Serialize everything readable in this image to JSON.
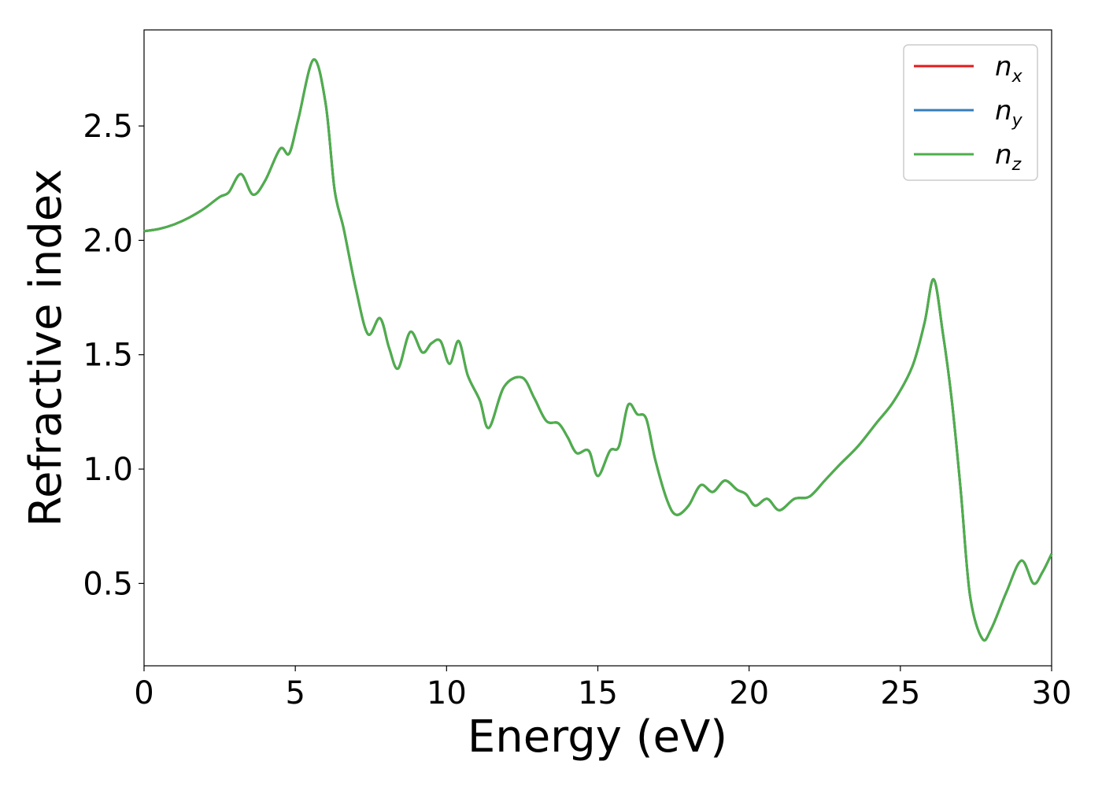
{
  "chart_data": {
    "type": "line",
    "title": "",
    "xlabel": "Energy (eV)",
    "ylabel": "Refractive index",
    "xlim": [
      0,
      30
    ],
    "ylim": [
      0.14,
      2.92
    ],
    "xticks": [
      "0",
      "5",
      "10",
      "15",
      "20",
      "25",
      "30"
    ],
    "yticks": [
      "0.5",
      "1.0",
      "1.5",
      "2.0",
      "2.5"
    ],
    "grid": false,
    "legend_position": "top-right",
    "series": [
      {
        "name": "n",
        "subscript": "x",
        "color": "#e41a1c"
      },
      {
        "name": "n",
        "subscript": "y",
        "color": "#377eb8"
      },
      {
        "name": "n",
        "subscript": "z",
        "color": "#4daf4a"
      }
    ],
    "curve": {
      "x": [
        0,
        0.5,
        1.0,
        1.5,
        2.0,
        2.5,
        2.8,
        3.2,
        3.6,
        4.0,
        4.5,
        4.8,
        5.1,
        5.6,
        6.0,
        6.3,
        6.6,
        7.0,
        7.4,
        7.8,
        8.1,
        8.4,
        8.8,
        9.2,
        9.5,
        9.8,
        10.1,
        10.4,
        10.7,
        11.1,
        11.4,
        11.9,
        12.5,
        12.9,
        13.3,
        13.7,
        14.0,
        14.3,
        14.7,
        15.0,
        15.4,
        15.7,
        16.0,
        16.3,
        16.6,
        16.9,
        17.3,
        17.6,
        18.0,
        18.4,
        18.8,
        19.2,
        19.6,
        19.9,
        20.2,
        20.6,
        21.0,
        21.5,
        22.0,
        22.5,
        23.0,
        23.6,
        24.2,
        24.8,
        25.4,
        25.8,
        26.1,
        26.4,
        26.7,
        27.0,
        27.3,
        27.7,
        28.0,
        28.5,
        29.0,
        29.4,
        29.7,
        30.0
      ],
      "y": [
        2.04,
        2.05,
        2.07,
        2.1,
        2.14,
        2.19,
        2.21,
        2.29,
        2.2,
        2.26,
        2.4,
        2.38,
        2.53,
        2.79,
        2.6,
        2.22,
        2.05,
        1.79,
        1.59,
        1.66,
        1.53,
        1.44,
        1.6,
        1.51,
        1.55,
        1.56,
        1.46,
        1.56,
        1.41,
        1.3,
        1.18,
        1.36,
        1.4,
        1.31,
        1.21,
        1.2,
        1.14,
        1.07,
        1.08,
        0.97,
        1.08,
        1.1,
        1.28,
        1.24,
        1.22,
        1.04,
        0.86,
        0.8,
        0.84,
        0.93,
        0.9,
        0.95,
        0.91,
        0.89,
        0.84,
        0.87,
        0.82,
        0.87,
        0.88,
        0.95,
        1.02,
        1.1,
        1.2,
        1.3,
        1.45,
        1.64,
        1.83,
        1.6,
        1.3,
        0.9,
        0.45,
        0.26,
        0.3,
        0.46,
        0.6,
        0.5,
        0.55,
        0.63
      ]
    }
  }
}
